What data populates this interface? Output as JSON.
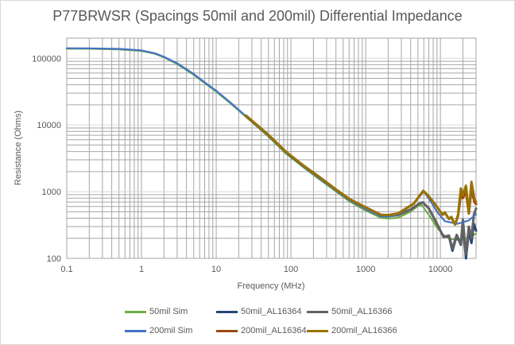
{
  "chart_data": {
    "type": "line",
    "title": "P77BRWSR (Spacings 50mil and 200mil) Differential Impedance",
    "xlabel": "Frequency (MHz)",
    "ylabel": "Resistance (Ohms)",
    "xscale": "log",
    "yscale": "log",
    "xlim": [
      0.1,
      30000
    ],
    "ylim": [
      100,
      200000
    ],
    "xticks": [
      "0.1",
      "1",
      "10",
      "100",
      "1000",
      "10000"
    ],
    "yticks": [
      "100",
      "1000",
      "10000",
      "100000"
    ],
    "grid": true,
    "legend_position": "bottom",
    "series": [
      {
        "name": "50mil Sim",
        "color": "#70AD47",
        "points": [
          [
            0.1,
            139000
          ],
          [
            0.2,
            138800
          ],
          [
            0.5,
            136000
          ],
          [
            1,
            129000
          ],
          [
            1.5,
            117000
          ],
          [
            2,
            103000
          ],
          [
            3,
            82000
          ],
          [
            5,
            56500
          ],
          [
            7,
            42500
          ],
          [
            10,
            31500
          ],
          [
            15,
            21800
          ],
          [
            25,
            13200
          ],
          [
            50,
            6700
          ],
          [
            86,
            3720
          ],
          [
            150,
            2280
          ],
          [
            230,
            1590
          ],
          [
            400,
            1010
          ],
          [
            612,
            710
          ],
          [
            1000,
            520
          ],
          [
            1600,
            405
          ],
          [
            2000,
            395
          ],
          [
            2700,
            405
          ],
          [
            4000,
            500
          ],
          [
            5000,
            610
          ],
          [
            5600,
            630
          ],
          [
            7000,
            450
          ],
          [
            9000,
            290
          ],
          [
            11000,
            225
          ],
          [
            13500,
            195
          ],
          [
            18800,
            188
          ],
          [
            24000,
            205
          ],
          [
            30000,
            235
          ]
        ]
      },
      {
        "name": "50mil_AL16364",
        "color": "#264478",
        "points": [
          [
            25,
            13600
          ],
          [
            50,
            7000
          ],
          [
            86,
            3900
          ],
          [
            150,
            2380
          ],
          [
            230,
            1680
          ],
          [
            400,
            1060
          ],
          [
            612,
            755
          ],
          [
            1000,
            560
          ],
          [
            1600,
            440
          ],
          [
            2000,
            430
          ],
          [
            2700,
            445
          ],
          [
            4000,
            540
          ],
          [
            5200,
            660
          ],
          [
            5800,
            690
          ],
          [
            7000,
            560
          ],
          [
            9000,
            330
          ],
          [
            11000,
            210
          ],
          [
            13000,
            215
          ],
          [
            14500,
            130
          ],
          [
            16500,
            220
          ],
          [
            18800,
            160
          ],
          [
            20000,
            330
          ],
          [
            22000,
            100
          ],
          [
            24000,
            260
          ],
          [
            26000,
            170
          ],
          [
            28000,
            330
          ],
          [
            30000,
            260
          ]
        ]
      },
      {
        "name": "50mil_AL16366",
        "color": "#636363",
        "points": [
          [
            25,
            13600
          ],
          [
            50,
            7000
          ],
          [
            86,
            3900
          ],
          [
            150,
            2380
          ],
          [
            230,
            1680
          ],
          [
            400,
            1060
          ],
          [
            612,
            755
          ],
          [
            1000,
            560
          ],
          [
            1600,
            440
          ],
          [
            2000,
            430
          ],
          [
            2700,
            445
          ],
          [
            4000,
            540
          ],
          [
            5200,
            660
          ],
          [
            5800,
            690
          ],
          [
            7000,
            560
          ],
          [
            9000,
            330
          ],
          [
            11000,
            210
          ],
          [
            13000,
            220
          ],
          [
            14500,
            140
          ],
          [
            16500,
            225
          ],
          [
            18800,
            165
          ],
          [
            20000,
            380
          ],
          [
            22000,
            115
          ],
          [
            24000,
            300
          ],
          [
            26000,
            200
          ],
          [
            28000,
            450
          ],
          [
            30000,
            560
          ]
        ]
      },
      {
        "name": "200mil Sim",
        "color": "#4472C4",
        "points": [
          [
            0.1,
            141000
          ],
          [
            0.2,
            140800
          ],
          [
            0.5,
            138000
          ],
          [
            1,
            131000
          ],
          [
            1.5,
            119000
          ],
          [
            2,
            105000
          ],
          [
            3,
            84000
          ],
          [
            5,
            58000
          ],
          [
            7,
            43500
          ],
          [
            10,
            32500
          ],
          [
            15,
            22400
          ],
          [
            25,
            13500
          ],
          [
            50,
            6850
          ],
          [
            86,
            3800
          ],
          [
            150,
            2330
          ],
          [
            230,
            1630
          ],
          [
            400,
            1040
          ],
          [
            612,
            735
          ],
          [
            1000,
            545
          ],
          [
            1600,
            425
          ],
          [
            2000,
            420
          ],
          [
            2700,
            450
          ],
          [
            4400,
            660
          ],
          [
            6000,
            1010
          ],
          [
            7500,
            700
          ],
          [
            9000,
            500
          ],
          [
            11500,
            360
          ],
          [
            17000,
            330
          ],
          [
            24000,
            370
          ],
          [
            30000,
            460
          ]
        ]
      },
      {
        "name": "200mil_AL16364",
        "color": "#9E480E",
        "points": [
          [
            25,
            13800
          ],
          [
            50,
            7100
          ],
          [
            86,
            3950
          ],
          [
            150,
            2420
          ],
          [
            230,
            1720
          ],
          [
            400,
            1080
          ],
          [
            612,
            770
          ],
          [
            1000,
            580
          ],
          [
            1600,
            450
          ],
          [
            2000,
            445
          ],
          [
            2700,
            470
          ],
          [
            4400,
            660
          ],
          [
            5900,
            1030
          ],
          [
            7000,
            850
          ],
          [
            8500,
            645
          ],
          [
            10700,
            450
          ],
          [
            11500,
            480
          ],
          [
            13000,
            390
          ],
          [
            14000,
            410
          ],
          [
            15700,
            320
          ],
          [
            17200,
            430
          ],
          [
            18800,
            900
          ],
          [
            20000,
            800
          ],
          [
            22000,
            1000
          ],
          [
            24000,
            470
          ],
          [
            26000,
            1100
          ],
          [
            28500,
            700
          ],
          [
            30000,
            650
          ]
        ]
      },
      {
        "name": "200mil_AL16366",
        "color": "#997300",
        "points": [
          [
            25,
            13800
          ],
          [
            50,
            7100
          ],
          [
            86,
            3950
          ],
          [
            150,
            2420
          ],
          [
            230,
            1720
          ],
          [
            400,
            1080
          ],
          [
            612,
            770
          ],
          [
            1000,
            580
          ],
          [
            1600,
            450
          ],
          [
            2000,
            445
          ],
          [
            2700,
            470
          ],
          [
            4400,
            660
          ],
          [
            5900,
            1030
          ],
          [
            7000,
            850
          ],
          [
            8500,
            645
          ],
          [
            10700,
            450
          ],
          [
            11500,
            490
          ],
          [
            13000,
            390
          ],
          [
            14000,
            420
          ],
          [
            15700,
            320
          ],
          [
            17200,
            450
          ],
          [
            18800,
            1120
          ],
          [
            20000,
            880
          ],
          [
            22000,
            1230
          ],
          [
            24000,
            490
          ],
          [
            26000,
            1400
          ],
          [
            28500,
            780
          ],
          [
            30000,
            700
          ]
        ]
      }
    ]
  }
}
